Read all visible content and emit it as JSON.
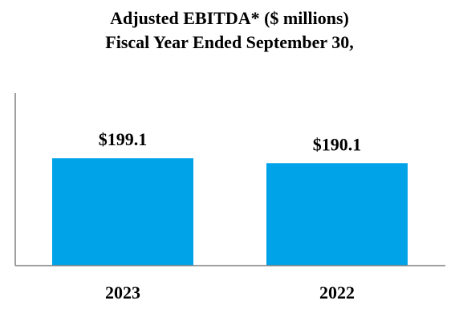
{
  "chart_data": {
    "type": "bar",
    "title": "Adjusted EBITDA* ($ millions)",
    "subtitle": "Fiscal Year Ended September 30,",
    "categories": [
      "2023",
      "2022"
    ],
    "values": [
      199.1,
      190.1
    ],
    "data_labels": [
      "$199.1",
      "$190.1"
    ],
    "xlabel": "",
    "ylabel": "",
    "ylim": [
      0,
      320
    ],
    "grid": false,
    "bar_color": "#00A2E8",
    "axis_color": "#808080"
  }
}
